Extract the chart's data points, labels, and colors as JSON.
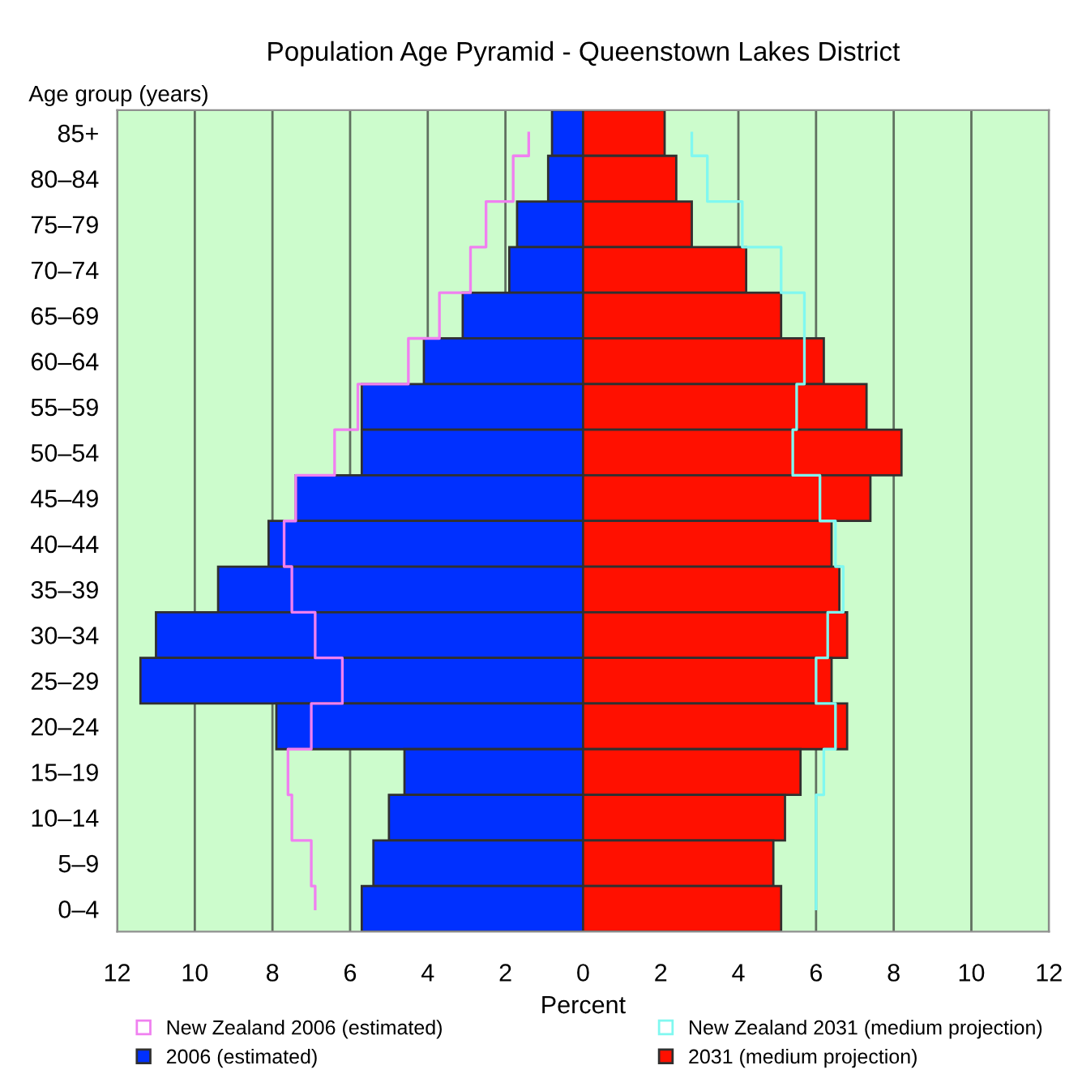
{
  "chart_data": {
    "type": "bar",
    "orientation": "horizontal",
    "title": "Population Age Pyramid - Queenstown Lakes District",
    "xlabel": "Percent",
    "ylabel": "Age group (years)",
    "categories": [
      "85+",
      "80–84",
      "75–79",
      "70–74",
      "65–69",
      "60–64",
      "55–59",
      "50–54",
      "45–49",
      "40–44",
      "35–39",
      "30–34",
      "25–29",
      "20–24",
      "15–19",
      "10–14",
      "5–9",
      "0–4"
    ],
    "series": [
      {
        "name": "New Zealand 2006 (estimated)",
        "type": "step",
        "color": "#f080f0",
        "values": [
          -1.4,
          -1.8,
          -2.5,
          -2.9,
          -3.7,
          -4.5,
          -5.8,
          -6.4,
          -7.4,
          -7.7,
          -7.5,
          -6.9,
          -6.2,
          -7.0,
          -7.6,
          -7.5,
          -7.0,
          -6.9
        ]
      },
      {
        "name": "2006 (estimated)",
        "color": "#0030ff",
        "values": [
          -0.8,
          -0.9,
          -1.7,
          -1.9,
          -3.1,
          -4.1,
          -5.7,
          -5.7,
          -7.4,
          -8.1,
          -9.4,
          -11.0,
          -11.4,
          -7.9,
          -4.6,
          -5.0,
          -5.4,
          -5.7
        ]
      },
      {
        "name": "New Zealand 2031 (medium projection)",
        "type": "step",
        "color": "#80f8f0",
        "values": [
          2.8,
          3.2,
          4.1,
          5.1,
          5.7,
          5.7,
          5.5,
          5.4,
          6.1,
          6.5,
          6.7,
          6.3,
          6.0,
          6.5,
          6.2,
          6.0,
          6.0,
          6.0
        ]
      },
      {
        "name": "2031 (medium projection)",
        "color": "#ff1000",
        "values": [
          2.1,
          2.4,
          2.8,
          4.2,
          5.1,
          6.2,
          7.3,
          8.2,
          7.4,
          6.4,
          6.6,
          6.8,
          6.4,
          6.8,
          5.6,
          5.2,
          4.9,
          5.1
        ]
      }
    ],
    "xlim": [
      -12,
      12
    ],
    "xticks": [
      {
        "value": -12,
        "label": "12"
      },
      {
        "value": -10,
        "label": "10"
      },
      {
        "value": -8,
        "label": "8"
      },
      {
        "value": -6,
        "label": "6"
      },
      {
        "value": -4,
        "label": "4"
      },
      {
        "value": -2,
        "label": "2"
      },
      0,
      2,
      4,
      6,
      8,
      10,
      12
    ],
    "stacked": true,
    "grid": "x",
    "legend": "bottom"
  }
}
